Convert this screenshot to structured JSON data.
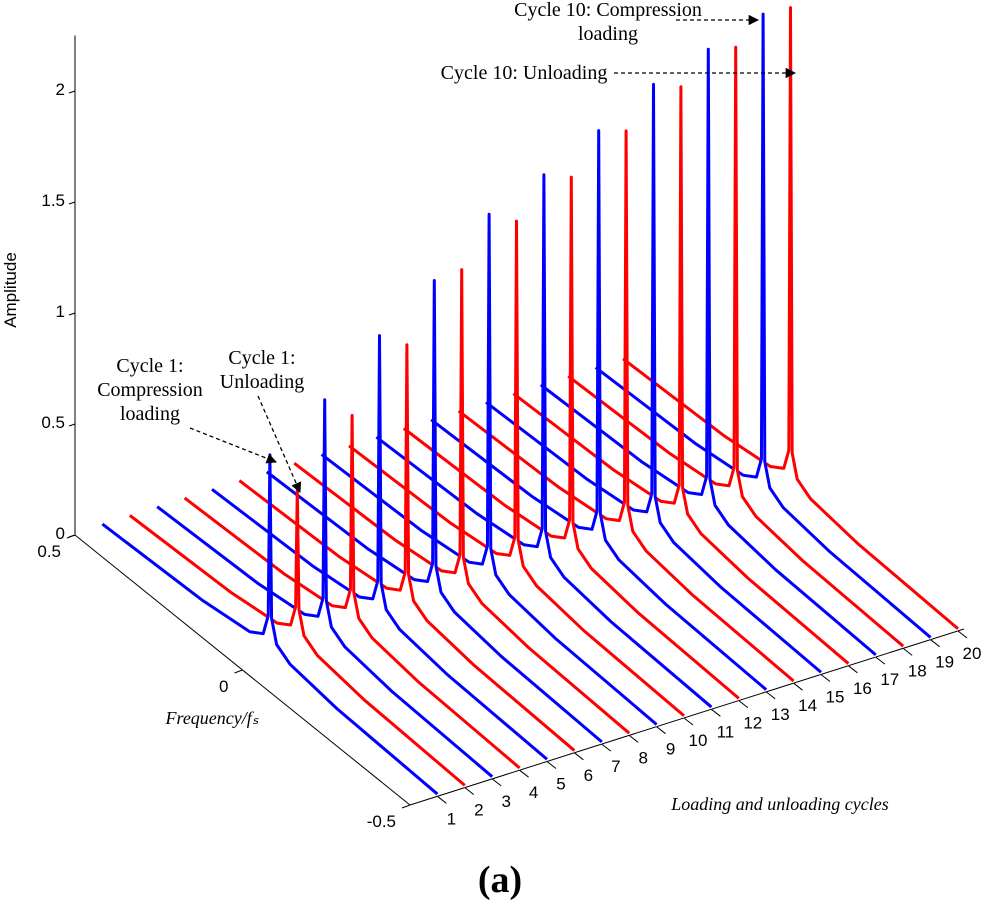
{
  "chart_data": {
    "type": "waterfall",
    "x_label": "Loading and unloading cycles",
    "y_label": "Frequency/fₛ",
    "z_label": "Amplitude",
    "xlim": [
      0,
      20
    ],
    "xticks": [
      1,
      2,
      3,
      4,
      5,
      6,
      7,
      8,
      9,
      10,
      11,
      12,
      13,
      14,
      15,
      16,
      17,
      18,
      19,
      20
    ],
    "ylim": [
      -0.5,
      0.5
    ],
    "yticks": [
      -0.5,
      0,
      0.5
    ],
    "zlim": [
      0,
      2.25
    ],
    "zticks": [
      0,
      0.5,
      1,
      1.5,
      2
    ],
    "frequency": [
      -0.5,
      -0.2,
      -0.06,
      -0.02,
      -0.005,
      0,
      0.005,
      0.02,
      0.06,
      0.2,
      0.5
    ],
    "series": [
      {
        "cycle": 1,
        "color": "#0000ff",
        "values": [
          0.01,
          0.03,
          0.06,
          0.1,
          0.2,
          0.93,
          0.2,
          0.1,
          0.06,
          0.03,
          0.01
        ]
      },
      {
        "cycle": 2,
        "color": "#ff0000",
        "values": [
          0.01,
          0.03,
          0.06,
          0.1,
          0.2,
          0.74,
          0.2,
          0.1,
          0.06,
          0.03,
          0.01
        ]
      },
      {
        "cycle": 3,
        "color": "#0000ff",
        "values": [
          0.01,
          0.03,
          0.06,
          0.1,
          0.2,
          1.1,
          0.2,
          0.1,
          0.06,
          0.03,
          0.01
        ]
      },
      {
        "cycle": 4,
        "color": "#ff0000",
        "values": [
          0.01,
          0.03,
          0.06,
          0.1,
          0.2,
          0.99,
          0.2,
          0.1,
          0.06,
          0.03,
          0.01
        ]
      },
      {
        "cycle": 5,
        "color": "#0000ff",
        "values": [
          0.01,
          0.03,
          0.06,
          0.1,
          0.2,
          1.31,
          0.2,
          0.1,
          0.06,
          0.03,
          0.01
        ]
      },
      {
        "cycle": 6,
        "color": "#ff0000",
        "values": [
          0.01,
          0.03,
          0.06,
          0.1,
          0.2,
          1.23,
          0.2,
          0.1,
          0.06,
          0.03,
          0.01
        ]
      },
      {
        "cycle": 7,
        "color": "#0000ff",
        "values": [
          0.01,
          0.03,
          0.06,
          0.1,
          0.2,
          1.48,
          0.2,
          0.1,
          0.06,
          0.03,
          0.01
        ]
      },
      {
        "cycle": 8,
        "color": "#ff0000",
        "values": [
          0.01,
          0.03,
          0.06,
          0.1,
          0.2,
          1.49,
          0.2,
          0.1,
          0.06,
          0.03,
          0.01
        ]
      },
      {
        "cycle": 9,
        "color": "#0000ff",
        "values": [
          0.01,
          0.03,
          0.06,
          0.1,
          0.2,
          1.7,
          0.2,
          0.1,
          0.06,
          0.03,
          0.01
        ]
      },
      {
        "cycle": 10,
        "color": "#ff0000",
        "values": [
          0.01,
          0.03,
          0.06,
          0.1,
          0.2,
          1.63,
          0.2,
          0.1,
          0.06,
          0.03,
          0.01
        ]
      },
      {
        "cycle": 11,
        "color": "#0000ff",
        "values": [
          0.01,
          0.03,
          0.06,
          0.1,
          0.2,
          1.8,
          0.2,
          0.1,
          0.06,
          0.03,
          0.01
        ]
      },
      {
        "cycle": 12,
        "color": "#ff0000",
        "values": [
          0.01,
          0.03,
          0.06,
          0.1,
          0.2,
          1.75,
          0.2,
          0.1,
          0.06,
          0.03,
          0.01
        ]
      },
      {
        "cycle": 13,
        "color": "#0000ff",
        "values": [
          0.01,
          0.03,
          0.06,
          0.1,
          0.2,
          1.92,
          0.2,
          0.1,
          0.06,
          0.03,
          0.01
        ]
      },
      {
        "cycle": 14,
        "color": "#ff0000",
        "values": [
          0.01,
          0.03,
          0.06,
          0.1,
          0.2,
          1.88,
          0.2,
          0.1,
          0.06,
          0.03,
          0.01
        ]
      },
      {
        "cycle": 15,
        "color": "#0000ff",
        "values": [
          0.01,
          0.03,
          0.06,
          0.1,
          0.2,
          2.05,
          0.2,
          0.1,
          0.06,
          0.03,
          0.01
        ]
      },
      {
        "cycle": 16,
        "color": "#ff0000",
        "values": [
          0.01,
          0.03,
          0.06,
          0.1,
          0.2,
          2.0,
          0.2,
          0.1,
          0.06,
          0.03,
          0.01
        ]
      },
      {
        "cycle": 17,
        "color": "#0000ff",
        "values": [
          0.01,
          0.03,
          0.06,
          0.1,
          0.2,
          2.13,
          0.2,
          0.1,
          0.06,
          0.03,
          0.01
        ]
      },
      {
        "cycle": 18,
        "color": "#ff0000",
        "values": [
          0.01,
          0.03,
          0.06,
          0.1,
          0.2,
          2.1,
          0.2,
          0.1,
          0.06,
          0.03,
          0.01
        ]
      },
      {
        "cycle": 19,
        "color": "#0000ff",
        "values": [
          0.01,
          0.03,
          0.06,
          0.1,
          0.2,
          2.21,
          0.2,
          0.1,
          0.06,
          0.03,
          0.01
        ]
      },
      {
        "cycle": 20,
        "color": "#ff0000",
        "values": [
          0.01,
          0.03,
          0.06,
          0.1,
          0.2,
          2.2,
          0.2,
          0.1,
          0.06,
          0.03,
          0.01
        ]
      }
    ],
    "annotations": [
      {
        "lines": [
          "Cycle 1:",
          "Compression",
          "loading"
        ]
      },
      {
        "lines": [
          "Cycle 1:",
          "Unloading"
        ]
      },
      {
        "lines": [
          "Cycle 10: Compression",
          "loading"
        ]
      },
      {
        "lines": [
          "Cycle 10: Unloading"
        ]
      }
    ],
    "caption": "(a)"
  }
}
